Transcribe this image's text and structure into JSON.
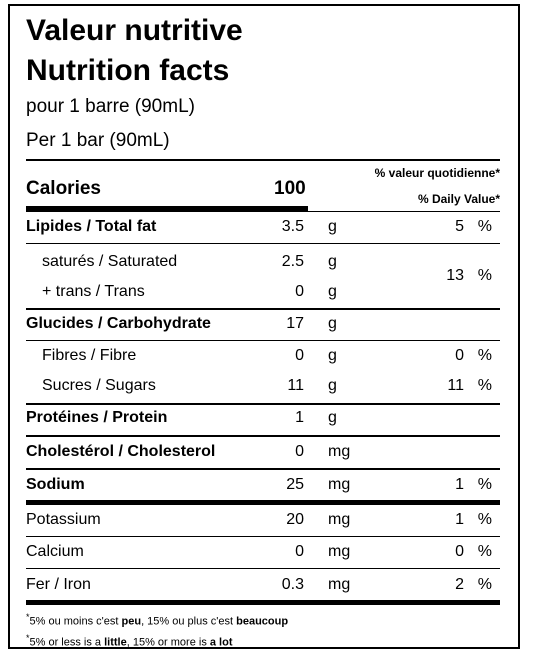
{
  "heading": {
    "title_fr": "Valeur nutritive",
    "title_en": "Nutrition facts",
    "serving_fr": "pour 1 barre (90mL)",
    "serving_en": "Per 1 bar (90mL)"
  },
  "calories": {
    "label": "Calories",
    "value": "100",
    "dv_header_fr": "% valeur quotidienne*",
    "dv_header_en": "% Daily Value*"
  },
  "nutrients": {
    "fat": {
      "label": "Lipides / Total fat",
      "amount": "3.5",
      "unit": "g",
      "dv": "5",
      "pct": "%"
    },
    "saturated": {
      "label": "saturés / Saturated",
      "amount": "2.5",
      "unit": "g"
    },
    "trans": {
      "label": "+ trans / Trans",
      "amount": "0",
      "unit": "g"
    },
    "sat_trans_dv": {
      "dv": "13",
      "pct": "%"
    },
    "carb": {
      "label": "Glucides / Carbohydrate",
      "amount": "17",
      "unit": "g"
    },
    "fibre": {
      "label": "Fibres / Fibre",
      "amount": "0",
      "unit": "g",
      "dv": "0",
      "pct": "%"
    },
    "sugars": {
      "label": "Sucres / Sugars",
      "amount": "11",
      "unit": "g",
      "dv": "11",
      "pct": "%"
    },
    "protein": {
      "label": "Protéines / Protein",
      "amount": "1",
      "unit": "g"
    },
    "cholesterol": {
      "label": "Cholestérol / Cholesterol",
      "amount": "0",
      "unit": "mg"
    },
    "sodium": {
      "label": "Sodium",
      "amount": "25",
      "unit": "mg",
      "dv": "1",
      "pct": "%"
    },
    "potassium": {
      "label": "Potassium",
      "amount": "20",
      "unit": "mg",
      "dv": "1",
      "pct": "%"
    },
    "calcium": {
      "label": "Calcium",
      "amount": "0",
      "unit": "mg",
      "dv": "0",
      "pct": "%"
    },
    "iron": {
      "label": "Fer / Iron",
      "amount": "0.3",
      "unit": "mg",
      "dv": "2",
      "pct": "%"
    }
  },
  "footnote": {
    "star": "*",
    "fr_a": "5% ou moins c'est ",
    "fr_b": "peu",
    "fr_c": ", 15% ou plus c'est ",
    "fr_d": "beaucoup",
    "en_a": "5% or less is a ",
    "en_b": "little",
    "en_c": ", 15% or more is ",
    "en_d": "a lot"
  }
}
